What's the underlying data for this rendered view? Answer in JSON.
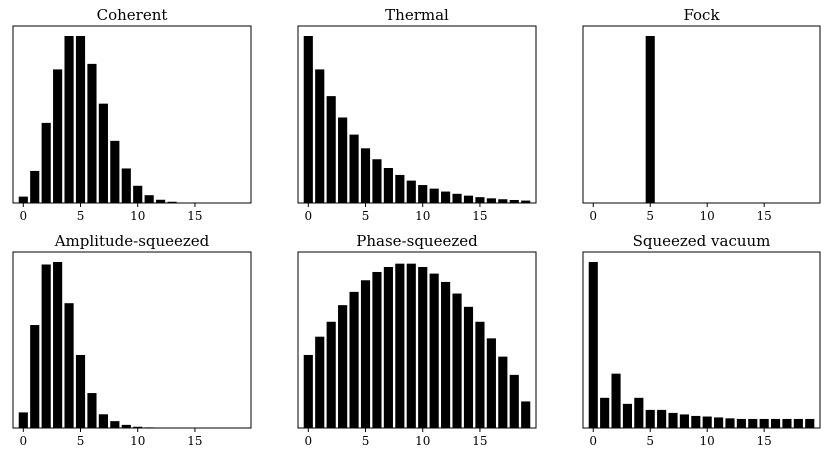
{
  "chart_data": [
    {
      "type": "bar",
      "title": "Coherent",
      "x": [
        0,
        1,
        2,
        3,
        4,
        5,
        6,
        7,
        8,
        9,
        10,
        11,
        12,
        13,
        14,
        15,
        16,
        17,
        18,
        19
      ],
      "values": [
        0.0067,
        0.0337,
        0.0842,
        0.1404,
        0.1755,
        0.1755,
        0.1462,
        0.1044,
        0.0653,
        0.0363,
        0.0181,
        0.0082,
        0.0034,
        0.0013,
        0.0005,
        0.0002,
        0.0001,
        0,
        0,
        0
      ],
      "xticks": [
        0,
        5,
        10,
        15
      ],
      "xlim": [
        -0.9,
        19.9
      ],
      "ylim": [
        0,
        0.1755
      ],
      "yticks": []
    },
    {
      "type": "bar",
      "title": "Thermal",
      "x": [
        0,
        1,
        2,
        3,
        4,
        5,
        6,
        7,
        8,
        9,
        10,
        11,
        12,
        13,
        14,
        15,
        16,
        17,
        18,
        19
      ],
      "values": [
        0.2,
        0.16,
        0.128,
        0.1024,
        0.0819,
        0.0655,
        0.0524,
        0.0419,
        0.0336,
        0.0268,
        0.0215,
        0.0172,
        0.0137,
        0.011,
        0.0088,
        0.007,
        0.0056,
        0.0045,
        0.0036,
        0.0029
      ],
      "xticks": [
        0,
        5,
        10,
        15
      ],
      "xlim": [
        -0.9,
        19.9
      ],
      "ylim": [
        0,
        0.2
      ],
      "yticks": []
    },
    {
      "type": "bar",
      "title": "Fock",
      "x": [
        0,
        1,
        2,
        3,
        4,
        5,
        6,
        7,
        8,
        9,
        10,
        11,
        12,
        13,
        14,
        15,
        16,
        17,
        18,
        19
      ],
      "values": [
        0,
        0,
        0,
        0,
        0,
        1,
        0,
        0,
        0,
        0,
        0,
        0,
        0,
        0,
        0,
        0,
        0,
        0,
        0,
        0
      ],
      "xticks": [
        0,
        5,
        10,
        15
      ],
      "xlim": [
        -0.9,
        19.9
      ],
      "ylim": [
        0,
        1
      ],
      "yticks": []
    },
    {
      "type": "bar",
      "title": "Amplitude-squeezed",
      "x": [
        0,
        1,
        2,
        3,
        4,
        5,
        6,
        7,
        8,
        9,
        10,
        11,
        12,
        13,
        14,
        15,
        16,
        17,
        18,
        19
      ],
      "values": [
        0.025,
        0.165,
        0.262,
        0.266,
        0.2,
        0.117,
        0.056,
        0.022,
        0.011,
        0.005,
        0.002,
        0.001,
        0,
        0,
        0,
        0,
        0,
        0,
        0,
        0
      ],
      "xticks": [
        0,
        5,
        10,
        15
      ],
      "xlim": [
        -0.9,
        19.9
      ],
      "ylim": [
        0,
        0.266
      ],
      "yticks": []
    },
    {
      "type": "bar",
      "title": "Phase-squeezed",
      "x": [
        0,
        1,
        2,
        3,
        4,
        5,
        6,
        7,
        8,
        9,
        10,
        11,
        12,
        13,
        14,
        15,
        16,
        17,
        18,
        19
      ],
      "values": [
        0.044,
        0.055,
        0.064,
        0.074,
        0.082,
        0.089,
        0.094,
        0.097,
        0.099,
        0.099,
        0.097,
        0.093,
        0.088,
        0.081,
        0.073,
        0.064,
        0.054,
        0.043,
        0.032,
        0.016
      ],
      "xticks": [
        0,
        5,
        10,
        15
      ],
      "xlim": [
        -0.9,
        19.9
      ],
      "ylim": [
        0,
        0.1
      ],
      "yticks": []
    },
    {
      "type": "bar",
      "title": "Squeezed vacuum",
      "x": [
        0,
        1,
        2,
        3,
        4,
        5,
        6,
        7,
        8,
        9,
        10,
        11,
        12,
        13,
        14,
        15,
        16,
        17,
        18,
        19
      ],
      "values": [
        0.55,
        0.1,
        0.18,
        0.08,
        0.1,
        0.06,
        0.06,
        0.05,
        0.045,
        0.04,
        0.038,
        0.035,
        0.032,
        0.03,
        0.03,
        0.03,
        0.03,
        0.03,
        0.03,
        0.03
      ],
      "xticks": [
        0,
        5,
        10,
        15
      ],
      "xlim": [
        -0.9,
        19.9
      ],
      "ylim": [
        0,
        0.55
      ],
      "yticks": []
    }
  ]
}
